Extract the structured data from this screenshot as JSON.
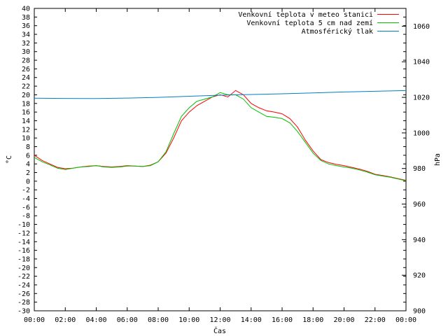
{
  "chart_data": {
    "type": "line",
    "xlabel": "Čas",
    "ylabel": "°C",
    "y2label": "hPa",
    "x_ticks": [
      "00:00",
      "02:00",
      "04:00",
      "06:00",
      "08:00",
      "10:00",
      "12:00",
      "14:00",
      "16:00",
      "18:00",
      "20:00",
      "22:00",
      "00:00"
    ],
    "xlim": [
      0,
      24
    ],
    "ylim": [
      -30,
      40
    ],
    "y_step": 2,
    "y2lim": [
      900,
      1070
    ],
    "y2_ticks": [
      900,
      920,
      940,
      960,
      980,
      1000,
      1020,
      1040,
      1060
    ],
    "grid": false,
    "legend_position": "top-right",
    "series": [
      {
        "name": "Venkovní teplota v meteo stanici",
        "axis": "left",
        "color": "#ff0000",
        "points": [
          [
            0,
            6
          ],
          [
            0.5,
            4.8
          ],
          [
            1,
            4
          ],
          [
            1.5,
            3.2
          ],
          [
            2,
            2.9
          ],
          [
            2.5,
            3
          ],
          [
            3,
            3.3
          ],
          [
            3.5,
            3.5
          ],
          [
            4,
            3.6
          ],
          [
            4.5,
            3.4
          ],
          [
            5,
            3.3
          ],
          [
            5.5,
            3.4
          ],
          [
            6,
            3.6
          ],
          [
            6.5,
            3.5
          ],
          [
            7,
            3.4
          ],
          [
            7.5,
            3.7
          ],
          [
            8,
            4.5
          ],
          [
            8.5,
            6.5
          ],
          [
            9,
            10
          ],
          [
            9.5,
            14
          ],
          [
            10,
            16
          ],
          [
            10.5,
            17.5
          ],
          [
            11,
            18.5
          ],
          [
            11.5,
            19.5
          ],
          [
            12,
            20
          ],
          [
            12.5,
            19.5
          ],
          [
            13,
            21
          ],
          [
            13.5,
            20
          ],
          [
            14,
            18
          ],
          [
            14.5,
            17
          ],
          [
            15,
            16.3
          ],
          [
            15.5,
            16
          ],
          [
            16,
            15.6
          ],
          [
            16.5,
            14.5
          ],
          [
            17,
            12.5
          ],
          [
            17.5,
            9.5
          ],
          [
            18,
            7
          ],
          [
            18.5,
            5
          ],
          [
            19,
            4.3
          ],
          [
            19.5,
            3.9
          ],
          [
            20,
            3.6
          ],
          [
            20.5,
            3.2
          ],
          [
            21,
            2.8
          ],
          [
            21.5,
            2.3
          ],
          [
            22,
            1.6
          ],
          [
            22.5,
            1.3
          ],
          [
            23,
            1
          ],
          [
            23.5,
            0.6
          ],
          [
            24,
            0.2
          ]
        ]
      },
      {
        "name": "Venkovní teplota 5 cm nad zemí",
        "axis": "left",
        "color": "#00c000",
        "points": [
          [
            0,
            5.5
          ],
          [
            0.5,
            4.5
          ],
          [
            1,
            3.8
          ],
          [
            1.5,
            3
          ],
          [
            2,
            2.7
          ],
          [
            2.5,
            3
          ],
          [
            3,
            3.3
          ],
          [
            3.5,
            3.4
          ],
          [
            4,
            3.6
          ],
          [
            4.5,
            3.3
          ],
          [
            5,
            3.2
          ],
          [
            5.5,
            3.3
          ],
          [
            6,
            3.5
          ],
          [
            6.5,
            3.5
          ],
          [
            7,
            3.4
          ],
          [
            7.5,
            3.6
          ],
          [
            8,
            4.5
          ],
          [
            8.5,
            6.8
          ],
          [
            9,
            11
          ],
          [
            9.5,
            15
          ],
          [
            10,
            17
          ],
          [
            10.5,
            18.5
          ],
          [
            11,
            19
          ],
          [
            11.5,
            19.5
          ],
          [
            12,
            20.5
          ],
          [
            12.5,
            20
          ],
          [
            13,
            20
          ],
          [
            13.5,
            19
          ],
          [
            14,
            17
          ],
          [
            14.5,
            16
          ],
          [
            15,
            15
          ],
          [
            15.5,
            14.8
          ],
          [
            16,
            14.5
          ],
          [
            16.5,
            13.5
          ],
          [
            17,
            11.5
          ],
          [
            17.5,
            9
          ],
          [
            18,
            6.5
          ],
          [
            18.5,
            4.8
          ],
          [
            19,
            4
          ],
          [
            19.5,
            3.6
          ],
          [
            20,
            3.3
          ],
          [
            20.5,
            3
          ],
          [
            21,
            2.6
          ],
          [
            21.5,
            2.1
          ],
          [
            22,
            1.5
          ],
          [
            22.5,
            1.2
          ],
          [
            23,
            0.9
          ],
          [
            23.5,
            0.5
          ],
          [
            24,
            0.1
          ]
        ]
      },
      {
        "name": "Atmosférický tlak",
        "axis": "right",
        "color": "#0080c0",
        "points": [
          [
            0,
            1019.5
          ],
          [
            2,
            1019.4
          ],
          [
            4,
            1019.3
          ],
          [
            6,
            1019.6
          ],
          [
            8,
            1020
          ],
          [
            10,
            1020.6
          ],
          [
            12,
            1021.2
          ],
          [
            14,
            1021.6
          ],
          [
            16,
            1022
          ],
          [
            18,
            1022.5
          ],
          [
            20,
            1023
          ],
          [
            22,
            1023.4
          ],
          [
            24,
            1023.8
          ]
        ]
      }
    ]
  }
}
